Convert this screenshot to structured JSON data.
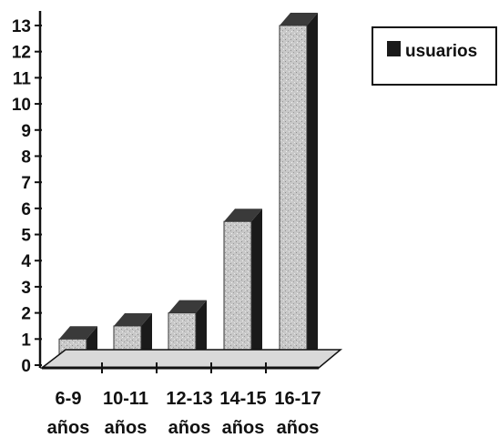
{
  "chart_data": {
    "type": "bar",
    "style": "3d-column",
    "categories": [
      [
        "6-9",
        "años"
      ],
      [
        "10-11",
        "años"
      ],
      [
        "12-13",
        "años"
      ],
      [
        "14-15",
        "años"
      ],
      [
        "16-17",
        "años"
      ]
    ],
    "series": [
      {
        "name": "usuarios",
        "values": [
          1,
          1.5,
          2,
          5.5,
          13
        ]
      }
    ],
    "ylim": [
      0,
      13
    ],
    "yticks": [
      "0",
      "1",
      "2",
      "3",
      "4",
      "5",
      "6",
      "7",
      "8",
      "9",
      "10",
      "11",
      "12",
      "13"
    ],
    "grid": false,
    "legend_position": "top-right",
    "colors": {
      "bar_front": "#c4c4c4",
      "bar_side": "#1a1a1a",
      "bar_top": "#3a3a3a",
      "axis": "#111111",
      "legend_swatch": "#1a1a1a"
    }
  }
}
